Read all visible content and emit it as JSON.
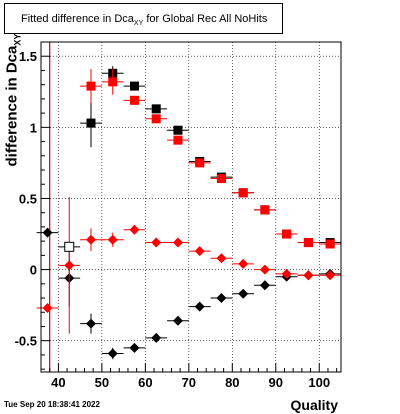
{
  "title": {
    "prefix": "Fitted difference in Dca",
    "sub": "XY",
    "suffix": " for Global Rec All NoHits"
  },
  "footer": {
    "timestamp": "Tue Sep 20 18:38:41 2022"
  },
  "chart_data": {
    "type": "scatter",
    "title": "Fitted difference in Dca_XY for Global Rec All NoHits",
    "xlabel": "Quality",
    "ylabel_prefix": "difference in Dca",
    "ylabel_sub": "XY",
    "xlim": [
      36,
      105
    ],
    "ylim": [
      -0.72,
      1.6
    ],
    "xticks": [
      40,
      50,
      60,
      70,
      80,
      90,
      100
    ],
    "yticks": [
      -0.5,
      0,
      0.5,
      1,
      1.5
    ],
    "grid": true,
    "reference_line_x": 38,
    "series": [
      {
        "marker": "square",
        "color": "#000000",
        "x": [
          47.5,
          52.5,
          57.5,
          62.5,
          67.5,
          72.5,
          77.5,
          82.5,
          87.5,
          92.5,
          97.5,
          102.5
        ],
        "y": [
          1.03,
          1.38,
          1.29,
          1.13,
          0.98,
          0.76,
          0.65,
          0.54,
          0.42,
          0.25,
          0.19,
          0.19
        ],
        "yerr": [
          0.17,
          0.05,
          0.03,
          0.02,
          0.015,
          0.01,
          0.01,
          0.01,
          0.01,
          0.01,
          0.01,
          0.01
        ]
      },
      {
        "marker": "square",
        "color": "#ff0000",
        "x": [
          47.5,
          52.5,
          57.5,
          62.5,
          67.5,
          72.5,
          77.5,
          82.5,
          87.5,
          92.5,
          97.5,
          102.5
        ],
        "y": [
          1.29,
          1.32,
          1.19,
          1.06,
          0.91,
          0.75,
          0.64,
          0.54,
          0.42,
          0.25,
          0.19,
          0.18
        ],
        "yerr": [
          0.12,
          0.09,
          0.03,
          0.02,
          0.015,
          0.01,
          0.01,
          0.01,
          0.01,
          0.01,
          0.01,
          0.01
        ]
      },
      {
        "marker": "diamond",
        "color": "#000000",
        "x": [
          37.5,
          42.5,
          47.5,
          52.5,
          57.5,
          62.5,
          67.5,
          72.5,
          77.5,
          82.5,
          87.5,
          92.5,
          97.5,
          102.5
        ],
        "y": [
          0.26,
          -0.06,
          -0.38,
          -0.59,
          -0.55,
          -0.48,
          -0.36,
          -0.26,
          -0.2,
          -0.17,
          -0.11,
          -0.05,
          -0.04,
          -0.03
        ],
        "yerr": [
          0.0,
          0.2,
          0.07,
          0.04,
          0.02,
          0.015,
          0.01,
          0.01,
          0.01,
          0.01,
          0.01,
          0.01,
          0.01,
          0.01
        ]
      },
      {
        "marker": "diamond",
        "color": "#ff0000",
        "x": [
          37.5,
          42.5,
          47.5,
          52.5,
          57.5,
          62.5,
          67.5,
          72.5,
          77.5,
          82.5,
          87.5,
          92.5,
          97.5,
          102.5
        ],
        "y": [
          -0.27,
          0.03,
          0.21,
          0.21,
          0.28,
          0.19,
          0.19,
          0.13,
          0.08,
          0.04,
          0.0,
          -0.03,
          -0.04,
          -0.04
        ],
        "yerr": [
          0.0,
          0.48,
          0.08,
          0.05,
          0.03,
          0.02,
          0.015,
          0.01,
          0.01,
          0.01,
          0.01,
          0.01,
          0.01,
          0.01
        ]
      },
      {
        "marker": "square-open",
        "color": "#000000",
        "x": [
          42.5
        ],
        "y": [
          0.16
        ],
        "yerr": [
          0.0
        ]
      }
    ]
  }
}
